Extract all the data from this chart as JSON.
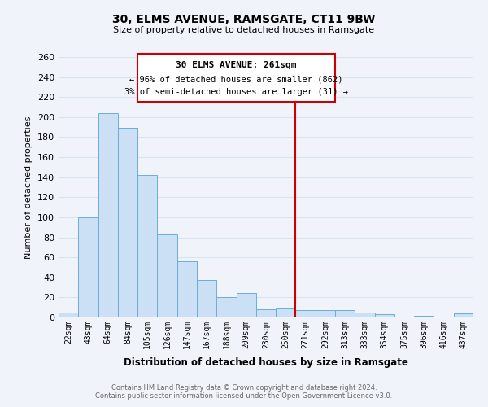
{
  "title": "30, ELMS AVENUE, RAMSGATE, CT11 9BW",
  "subtitle": "Size of property relative to detached houses in Ramsgate",
  "xlabel": "Distribution of detached houses by size in Ramsgate",
  "ylabel": "Number of detached properties",
  "bar_labels": [
    "22sqm",
    "43sqm",
    "64sqm",
    "84sqm",
    "105sqm",
    "126sqm",
    "147sqm",
    "167sqm",
    "188sqm",
    "209sqm",
    "230sqm",
    "250sqm",
    "271sqm",
    "292sqm",
    "313sqm",
    "333sqm",
    "354sqm",
    "375sqm",
    "396sqm",
    "416sqm",
    "437sqm"
  ],
  "bar_values": [
    5,
    100,
    204,
    189,
    142,
    83,
    56,
    37,
    20,
    24,
    8,
    10,
    7,
    7,
    7,
    5,
    3,
    0,
    2,
    0,
    4
  ],
  "bar_color": "#cce0f5",
  "bar_edge_color": "#6aaed6",
  "highlight_line_color": "#cc0000",
  "annotation_title": "30 ELMS AVENUE: 261sqm",
  "annotation_line1": "← 96% of detached houses are smaller (862)",
  "annotation_line2": "3% of semi-detached houses are larger (31) →",
  "annotation_box_color": "#ffffff",
  "annotation_box_edge": "#cc0000",
  "footer_line1": "Contains HM Land Registry data © Crown copyright and database right 2024.",
  "footer_line2": "Contains public sector information licensed under the Open Government Licence v3.0.",
  "ylim": [
    0,
    260
  ],
  "yticks": [
    0,
    20,
    40,
    60,
    80,
    100,
    120,
    140,
    160,
    180,
    200,
    220,
    240,
    260
  ],
  "grid_color": "#d8e4f0",
  "bg_color": "#f0f4fa"
}
